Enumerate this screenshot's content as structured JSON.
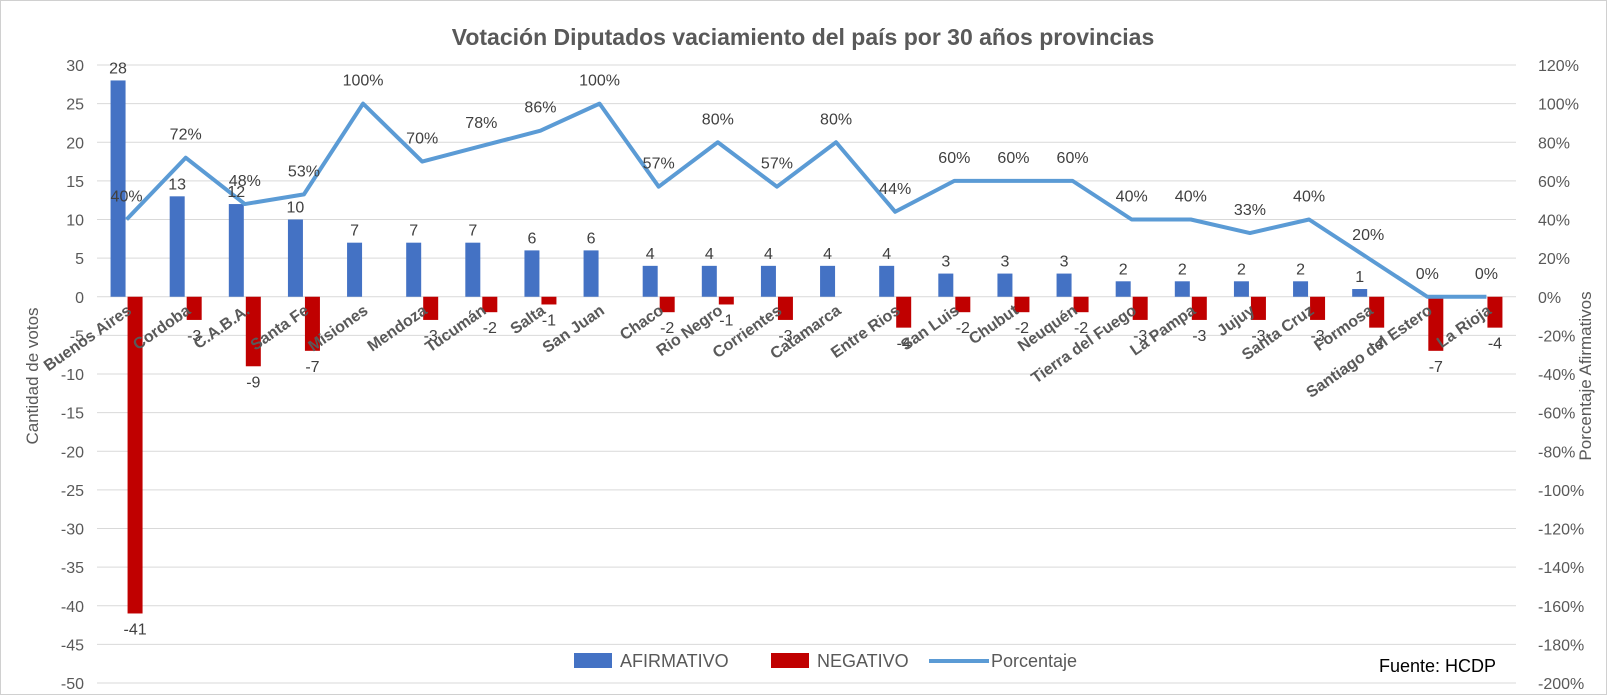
{
  "chart_data": {
    "type": "bar",
    "title": "Votación Diputados vaciamiento del país por 30 años provincias",
    "ylabel": "Cantidad de votos",
    "ylabel_right": "Porcentaje Afirmativos",
    "ylim": [
      -50,
      30
    ],
    "yticks": [
      "30",
      "25",
      "20",
      "15",
      "10",
      "5",
      "0",
      "-5",
      "-10",
      "-15",
      "-20",
      "-25",
      "-30",
      "-35",
      "-40",
      "-45",
      "-50"
    ],
    "ylim_right": [
      -200,
      120
    ],
    "yticks_right": [
      "120%",
      "100%",
      "80%",
      "60%",
      "40%",
      "20%",
      "0%",
      "-20%",
      "-40%",
      "-60%",
      "-80%",
      "-100%",
      "-120%",
      "-140%",
      "-160%",
      "-180%",
      "-200%"
    ],
    "grid": true,
    "legend_position": "bottom",
    "source_note": "Fuente: HCDP",
    "categories": [
      "Buenos Aires",
      "Cordoba",
      "C.A.B.A.",
      "Santa Fe",
      "Misiones",
      "Mendoza",
      "Tucumán",
      "Salta",
      "San Juan",
      "Chaco",
      "Rio Negro",
      "Corrientes",
      "Catamarca",
      "Entre Rios",
      "San Luis",
      "Chubut",
      "Neuquén",
      "Tierra del Fuego",
      "La Pampa",
      "Jujuy",
      "Santa Cruz",
      "Formosa",
      "Santiago del Estero",
      "La Rioja"
    ],
    "series": [
      {
        "name": "AFIRMATIVO",
        "kind": "bar",
        "color": "#4472C4",
        "values": [
          28,
          13,
          12,
          10,
          7,
          7,
          7,
          6,
          6,
          4,
          4,
          4,
          4,
          4,
          3,
          3,
          3,
          2,
          2,
          2,
          2,
          1,
          0,
          0
        ],
        "labels": [
          "28",
          "13",
          "12",
          "10",
          "7",
          "7",
          "7",
          "6",
          "6",
          "4",
          "4",
          "4",
          "4",
          "4",
          "3",
          "3",
          "3",
          "2",
          "2",
          "2",
          "2",
          "1",
          "",
          ""
        ]
      },
      {
        "name": "NEGATIVO",
        "kind": "bar",
        "color": "#C00000",
        "values": [
          -41,
          -3,
          -9,
          -7,
          0,
          -3,
          -2,
          -1,
          0,
          -2,
          -1,
          -3,
          0,
          -4,
          -2,
          -2,
          -2,
          -3,
          -3,
          -3,
          -3,
          -4,
          -7,
          -4
        ],
        "labels": [
          "-41",
          "-3",
          "-9",
          "-7",
          "",
          "-3",
          "-2",
          "-1",
          "",
          "-2",
          "-1",
          "-3",
          "",
          "-4",
          "-2",
          "-2",
          "-2",
          "-3",
          "-3",
          "-3",
          "-3",
          "-4",
          "-7",
          "-4"
        ]
      },
      {
        "name": "Porcentaje",
        "kind": "line",
        "axis": "right",
        "color": "#5B9BD5",
        "values": [
          40,
          72,
          48,
          53,
          100,
          70,
          78,
          86,
          100,
          57,
          80,
          57,
          80,
          44,
          60,
          60,
          60,
          40,
          40,
          33,
          40,
          20,
          0,
          0
        ],
        "labels": [
          "40%",
          "72%",
          "48%",
          "53%",
          "100%",
          "70%",
          "78%",
          "86%",
          "100%",
          "57%",
          "80%",
          "57%",
          "80%",
          "44%",
          "60%",
          "60%",
          "60%",
          "40%",
          "40%",
          "33%",
          "40%",
          "20%",
          "0%",
          "0%"
        ]
      }
    ]
  }
}
